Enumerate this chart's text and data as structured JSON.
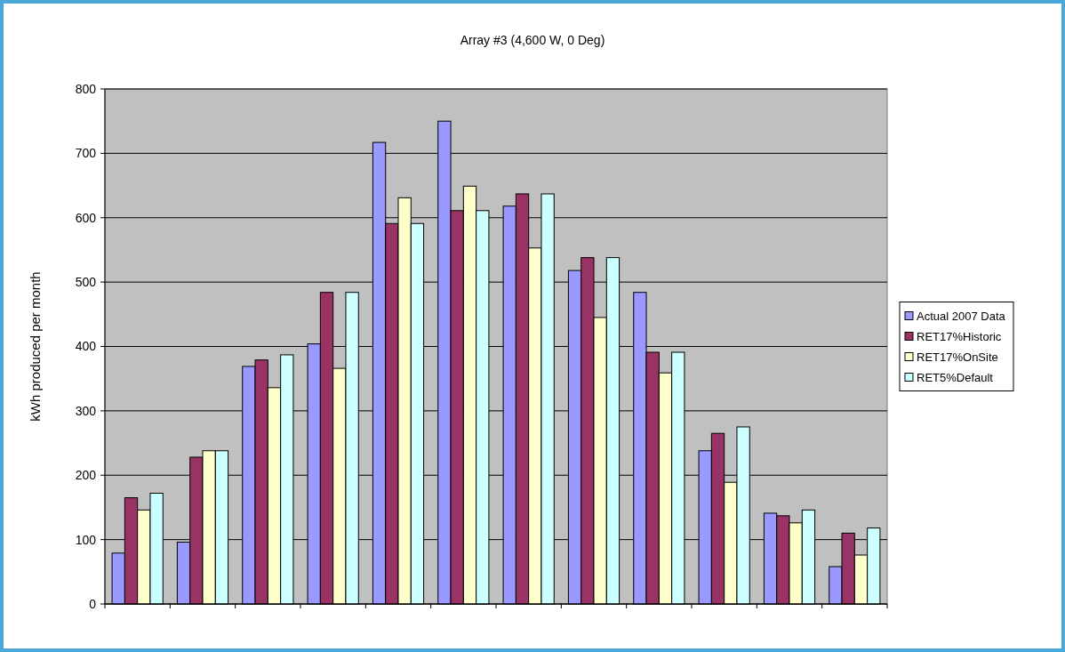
{
  "chart_data": {
    "type": "bar",
    "title": "Array #3 (4,600 W, 0 Deg)",
    "ylabel": "kWh produced per month",
    "categories": [
      null,
      null,
      null,
      null,
      null,
      null,
      null,
      null,
      null,
      null,
      null,
      null
    ],
    "series": [
      {
        "name": "Actual 2007 Data",
        "color": "#9999ff",
        "values": [
          79,
          96,
          369,
          404,
          717,
          750,
          618,
          518,
          484,
          238,
          141,
          58
        ]
      },
      {
        "name": "RET17%Historic",
        "color": "#993366",
        "values": [
          165,
          228,
          379,
          484,
          591,
          611,
          637,
          538,
          391,
          265,
          137,
          110
        ]
      },
      {
        "name": "RET17%OnSite",
        "color": "#ffffcc",
        "values": [
          146,
          238,
          336,
          366,
          631,
          649,
          553,
          445,
          359,
          189,
          126,
          76
        ]
      },
      {
        "name": "RET5%Default",
        "color": "#ccffff",
        "values": [
          172,
          238,
          387,
          484,
          591,
          611,
          637,
          538,
          391,
          275,
          146,
          118
        ]
      }
    ],
    "ylim": [
      0,
      800
    ],
    "yticks": [
      0,
      100,
      200,
      300,
      400,
      500,
      600,
      700,
      800
    ],
    "grid": "y",
    "legend": "right"
  }
}
